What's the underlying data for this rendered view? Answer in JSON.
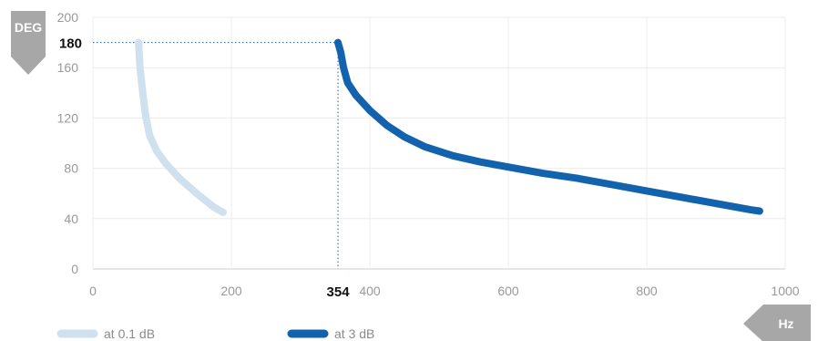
{
  "chart_data": {
    "type": "line",
    "ylabel": "DEG",
    "xlabel": "Hz",
    "xlim": [
      0,
      1000
    ],
    "ylim": [
      0,
      200
    ],
    "x_ticks": [
      "0",
      "200",
      "400",
      "600",
      "800",
      "1000"
    ],
    "y_ticks": [
      "0",
      "40",
      "80",
      "120",
      "160",
      "200"
    ],
    "grid": true,
    "legend_position": "bottom-left",
    "highlight": {
      "x": 354,
      "y": 180,
      "x_label": "354",
      "y_label": "180"
    },
    "series": [
      {
        "name": "at 0.1 dB",
        "color": "#cfe0ef",
        "points": [
          [
            66,
            180
          ],
          [
            68,
            160
          ],
          [
            72,
            140
          ],
          [
            76,
            122
          ],
          [
            82,
            106
          ],
          [
            92,
            94
          ],
          [
            105,
            84
          ],
          [
            125,
            72
          ],
          [
            150,
            60
          ],
          [
            175,
            49
          ],
          [
            188,
            45
          ]
        ]
      },
      {
        "name": "at 3 dB",
        "color": "#1262ad",
        "points": [
          [
            354,
            180
          ],
          [
            358,
            172
          ],
          [
            362,
            160
          ],
          [
            368,
            148
          ],
          [
            380,
            138
          ],
          [
            400,
            126
          ],
          [
            425,
            114
          ],
          [
            450,
            105
          ],
          [
            480,
            97
          ],
          [
            520,
            90
          ],
          [
            560,
            85
          ],
          [
            600,
            81
          ],
          [
            650,
            76
          ],
          [
            700,
            72
          ],
          [
            750,
            67
          ],
          [
            800,
            62
          ],
          [
            850,
            57
          ],
          [
            900,
            52
          ],
          [
            950,
            47
          ],
          [
            963,
            46
          ]
        ]
      }
    ]
  }
}
